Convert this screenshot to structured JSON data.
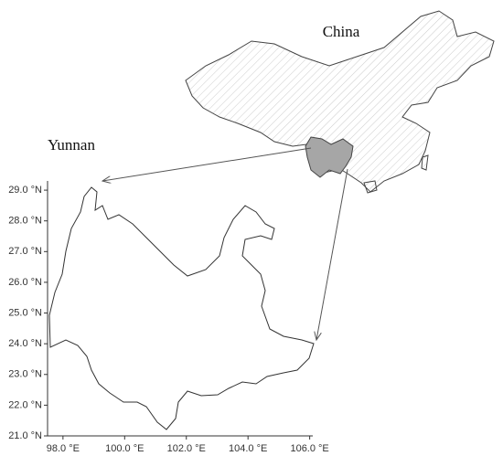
{
  "map": {
    "labels": {
      "china": "China",
      "yunnan": "Yunnan"
    },
    "xlim": [
      97.5,
      106.1
    ],
    "ylim": [
      21.0,
      29.3
    ],
    "xticks": [
      {
        "value": 98,
        "label": "98.0 °E"
      },
      {
        "value": 100,
        "label": "100.0 °E"
      },
      {
        "value": 102,
        "label": "102.0 °E"
      },
      {
        "value": 104,
        "label": "104.0 °E"
      },
      {
        "value": 106,
        "label": "106.0 °E"
      }
    ],
    "yticks": [
      {
        "value": 21,
        "label": "21.0 °N"
      },
      {
        "value": 22,
        "label": "22.0 °N"
      },
      {
        "value": 23,
        "label": "23.0 °N"
      },
      {
        "value": 24,
        "label": "24.0 °N"
      },
      {
        "value": 25,
        "label": "25.0 °N"
      },
      {
        "value": 26,
        "label": "26.0 °N"
      },
      {
        "value": 27,
        "label": "27.0 °N"
      },
      {
        "value": 28,
        "label": "28.0 °N"
      },
      {
        "value": 29,
        "label": "29.0 °N"
      }
    ]
  }
}
